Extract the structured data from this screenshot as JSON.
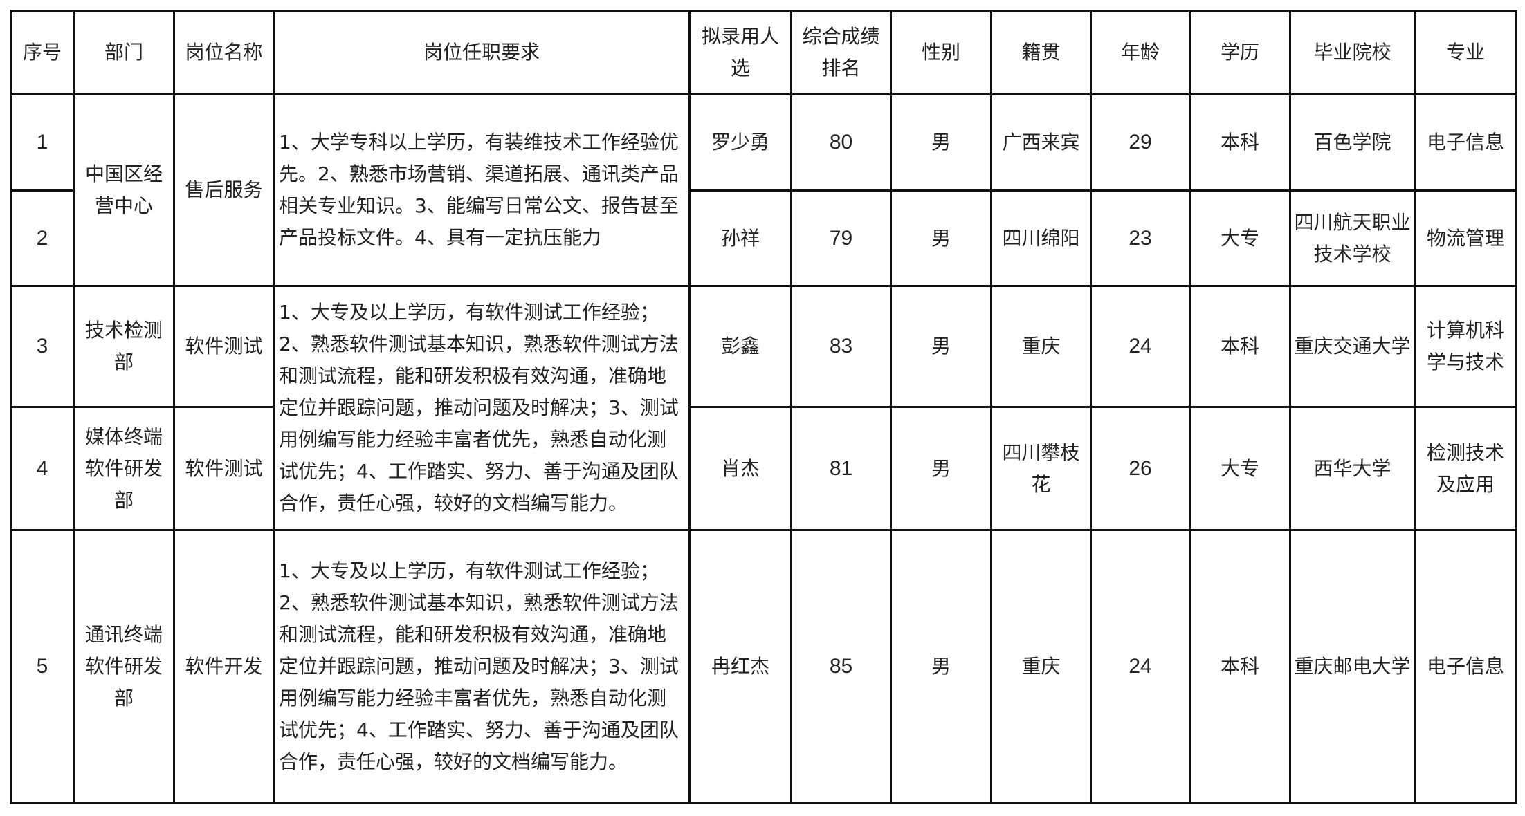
{
  "headers": [
    "序号",
    "部门",
    "岗位名称",
    "岗位任职要求",
    "拟录用人选",
    "综合成绩排名",
    "性别",
    "籍贯",
    "年龄",
    "学历",
    "毕业院校",
    "专业"
  ],
  "requirements": {
    "sales": "1、大学专科以上学历，有装维技术工作经验优先。2、熟悉市场营销、渠道拓展、通讯类产品相关专业知识。3、能编写日常公文、报告甚至产品投标文件。4、具有一定抗压能力",
    "testing": "1、大专及以上学历，有软件测试工作经验；2、熟悉软件测试基本知识，熟悉软件测试方法和测试流程，能和研发积极有效沟通，准确地定位并跟踪问题，推动问题及时解决；3、测试用例编写能力经验丰富者优先，熟悉自动化测试优先；4、工作踏实、努力、善于沟通及团队合作，责任心强，较好的文档编写能力。"
  },
  "rows": [
    {
      "no": "1",
      "dept": "中国区经营中心",
      "position": "售后服务",
      "name": "罗少勇",
      "score": "80",
      "gender": "男",
      "origin": "广西来宾",
      "age": "29",
      "edu": "本科",
      "school": "百色学院",
      "major": "电子信息"
    },
    {
      "no": "2",
      "dept": "中国区经营中心",
      "position": "售后服务",
      "name": "孙祥",
      "score": "79",
      "gender": "男",
      "origin": "四川绵阳",
      "age": "23",
      "edu": "大专",
      "school": "四川航天职业技术学校",
      "major": "物流管理"
    },
    {
      "no": "3",
      "dept": "技术检测部",
      "position": "软件测试",
      "name": "彭鑫",
      "score": "83",
      "gender": "男",
      "origin": "重庆",
      "age": "24",
      "edu": "本科",
      "school": "重庆交通大学",
      "major": "计算机科学与技术"
    },
    {
      "no": "4",
      "dept": "媒体终端软件研发部",
      "position": "软件测试",
      "name": "肖杰",
      "score": "81",
      "gender": "男",
      "origin": "四川攀枝花",
      "age": "26",
      "edu": "大专",
      "school": "西华大学",
      "major": "检测技术及应用"
    },
    {
      "no": "5",
      "dept": "通讯终端软件研发部",
      "position": "软件开发",
      "name": "冉红杰",
      "score": "85",
      "gender": "男",
      "origin": "重庆",
      "age": "24",
      "edu": "本科",
      "school": "重庆邮电大学",
      "major": "电子信息"
    }
  ]
}
